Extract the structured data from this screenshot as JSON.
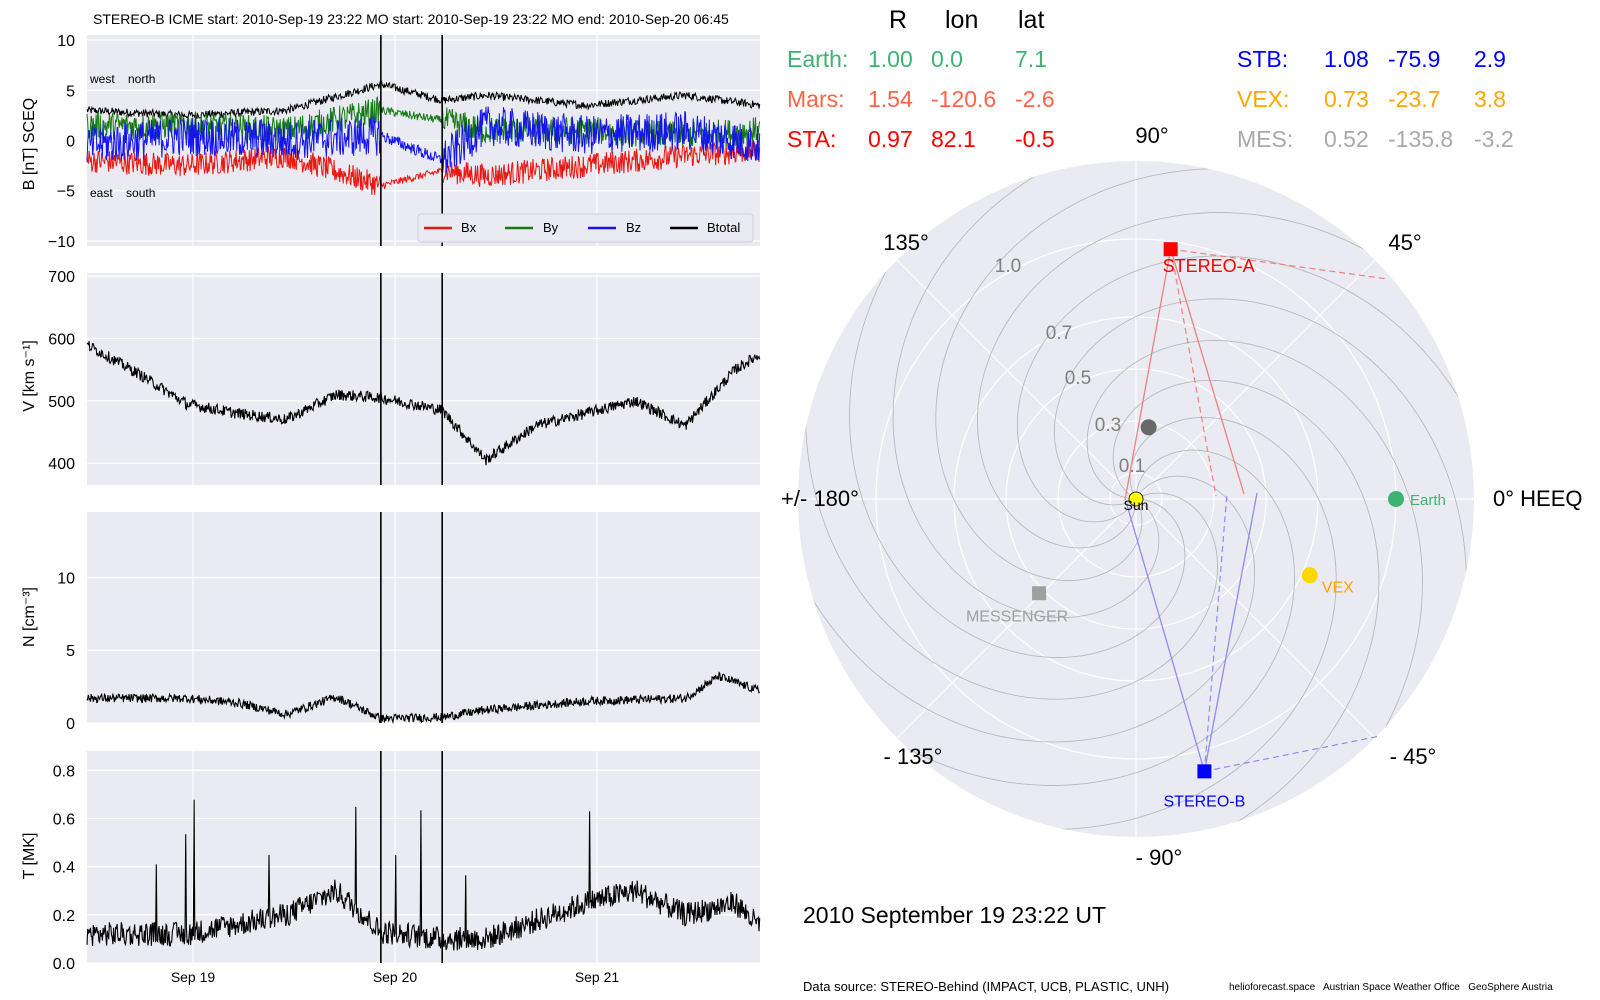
{
  "panel_title": "STEREO-B    ICME start: 2010-Sep-19 23:22   MO start: 2010-Sep-19 23:22   MO end: 2010-Sep-20 06:45",
  "time_ticks": [
    "Sep 19",
    "Sep 20",
    "Sep 21"
  ],
  "b_panel": {
    "ylabel": "B [nT] SCEQ",
    "yticks": [
      "10",
      "5",
      "0",
      "−5",
      "−10"
    ],
    "annot_top": "west    north",
    "annot_bottom": "east    south",
    "legend": [
      "Bx",
      "By",
      "Bz",
      "Btotal"
    ],
    "colors": {
      "Bx": "#e8170f",
      "By": "#147a14",
      "Bz": "#1414f0",
      "Btotal": "#000000"
    }
  },
  "v_panel": {
    "ylabel": "V [km s⁻¹]",
    "yticks": [
      "700",
      "600",
      "500",
      "400"
    ]
  },
  "n_panel": {
    "ylabel": "N [cm⁻³]",
    "yticks": [
      "10",
      "5",
      "0"
    ]
  },
  "t_panel": {
    "ylabel": "T [MK]",
    "yticks": [
      "0.8",
      "0.6",
      "0.4",
      "0.2",
      "0.0"
    ]
  },
  "chart_data": [
    {
      "type": "line",
      "name": "B panel",
      "ylabel": "B [nT] SCEQ",
      "ylim": [
        -10.5,
        10.5
      ],
      "x_range_days": [
        "2010-09-18 12:00",
        "2010-09-21 21:00"
      ],
      "event_lines": [
        "2010-09-19 23:22",
        "2010-09-20 06:45"
      ],
      "series": [
        {
          "name": "Btotal",
          "x": [
            "2010-09-18 12:00",
            "2010-09-19 00:00",
            "2010-09-19 12:00",
            "2010-09-19 23:22",
            "2010-09-20 06:45",
            "2010-09-20 12:00",
            "2010-09-21 00:00",
            "2010-09-21 12:00",
            "2010-09-21 21:00"
          ],
          "values": [
            3.0,
            2.5,
            3.0,
            5.6,
            4.0,
            4.5,
            3.5,
            4.5,
            3.5
          ]
        },
        {
          "name": "Bx",
          "x": [
            "2010-09-18 12:00",
            "2010-09-19 00:00",
            "2010-09-19 12:00",
            "2010-09-19 23:22",
            "2010-09-20 06:45",
            "2010-09-20 12:00",
            "2010-09-21 00:00",
            "2010-09-21 12:00",
            "2010-09-21 21:00"
          ],
          "values": [
            -2.0,
            -2.5,
            -1.5,
            -4.5,
            -3.0,
            -3.5,
            -2.5,
            -1.5,
            -1.0
          ]
        },
        {
          "name": "By",
          "x": [
            "2010-09-18 12:00",
            "2010-09-19 00:00",
            "2010-09-19 12:00",
            "2010-09-19 23:22",
            "2010-09-20 06:45",
            "2010-09-20 12:00",
            "2010-09-21 00:00",
            "2010-09-21 12:00",
            "2010-09-21 21:00"
          ],
          "values": [
            1.5,
            1.5,
            1.0,
            3.0,
            2.0,
            1.0,
            1.0,
            0.5,
            1.0
          ]
        },
        {
          "name": "Bz",
          "x": [
            "2010-09-18 12:00",
            "2010-09-19 00:00",
            "2010-09-19 12:00",
            "2010-09-19 23:22",
            "2010-09-20 06:45",
            "2010-09-20 12:00",
            "2010-09-21 00:00",
            "2010-09-21 12:00",
            "2010-09-21 21:00"
          ],
          "values": [
            -0.5,
            0.5,
            0.0,
            0.5,
            -2.0,
            1.5,
            0.5,
            1.0,
            -0.5
          ]
        }
      ]
    },
    {
      "type": "line",
      "name": "V panel",
      "ylabel": "V [km s⁻¹]",
      "ylim": [
        365,
        705
      ],
      "series": [
        {
          "name": "V",
          "x": [
            "2010-09-18 12:00",
            "2010-09-18 18:00",
            "2010-09-19 00:00",
            "2010-09-19 06:00",
            "2010-09-19 12:00",
            "2010-09-19 18:00",
            "2010-09-19 23:22",
            "2010-09-20 06:45",
            "2010-09-20 12:00",
            "2010-09-20 18:00",
            "2010-09-21 00:00",
            "2010-09-21 06:00",
            "2010-09-21 12:00",
            "2010-09-21 18:00",
            "2010-09-21 21:00"
          ],
          "values": [
            590,
            545,
            495,
            480,
            470,
            510,
            505,
            485,
            405,
            460,
            480,
            500,
            460,
            550,
            575
          ]
        }
      ]
    },
    {
      "type": "line",
      "name": "N panel",
      "ylabel": "N [cm⁻³]",
      "ylim": [
        0,
        14.5
      ],
      "series": [
        {
          "name": "N",
          "x": [
            "2010-09-18 12:00",
            "2010-09-19 00:00",
            "2010-09-19 06:00",
            "2010-09-19 12:00",
            "2010-09-19 18:00",
            "2010-09-19 23:22",
            "2010-09-20 06:45",
            "2010-09-20 12:00",
            "2010-09-21 00:00",
            "2010-09-21 12:00",
            "2010-09-21 16:00",
            "2010-09-21 21:00"
          ],
          "values": [
            1.7,
            1.7,
            1.4,
            0.6,
            1.8,
            0.3,
            0.4,
            0.9,
            1.5,
            1.7,
            3.2,
            2.2
          ]
        }
      ]
    },
    {
      "type": "line",
      "name": "T panel",
      "ylabel": "T [MK]",
      "ylim": [
        0,
        0.88
      ],
      "series": [
        {
          "name": "T",
          "x": [
            "2010-09-18 12:00",
            "2010-09-19 00:00",
            "2010-09-19 12:00",
            "2010-09-19 18:00",
            "2010-09-19 23:22",
            "2010-09-20 06:45",
            "2010-09-20 12:00",
            "2010-09-21 00:00",
            "2010-09-21 06:00",
            "2010-09-21 12:00",
            "2010-09-21 18:00",
            "2010-09-21 21:00"
          ],
          "values": [
            0.12,
            0.12,
            0.2,
            0.3,
            0.13,
            0.1,
            0.1,
            0.25,
            0.3,
            0.2,
            0.25,
            0.15
          ]
        }
      ]
    },
    {
      "type": "scatter",
      "name": "HEEQ polar position plot",
      "projection": "polar",
      "r_ticks": [
        "0.1",
        "0.3",
        "0.5",
        "0.7",
        "1.0"
      ],
      "angle_labels": {
        "0": "0° HEEQ",
        "45": "45°",
        "90": "90°",
        "135": "135°",
        "180": "+/- 180°",
        "-135": "- 135°",
        "-90": "- 90°",
        "-45": "- 45°"
      },
      "points": [
        {
          "name": "Sun",
          "r": 0.0,
          "lon": 0.0,
          "color": "#ffff00",
          "marker": "circle"
        },
        {
          "name": "Earth",
          "r": 1.0,
          "lon": 0.0,
          "color": "#3cb371",
          "marker": "circle"
        },
        {
          "name": "STEREO-A",
          "r": 0.97,
          "lon": 82.1,
          "color": "#ff0000",
          "marker": "square"
        },
        {
          "name": "STEREO-B",
          "r": 1.08,
          "lon": -75.9,
          "color": "#0000ff",
          "marker": "square"
        },
        {
          "name": "VEX",
          "r": 0.73,
          "lon": -23.7,
          "color": "#ffd700",
          "marker": "circle"
        },
        {
          "name": "MESSENGER",
          "r": 0.52,
          "lon": -135.8,
          "color": "#a0a0a0",
          "marker": "square"
        },
        {
          "name": "",
          "r": 0.28,
          "lon": 80.0,
          "color": "#696969",
          "marker": "circle"
        }
      ]
    }
  ],
  "positions": {
    "headers": [
      "R",
      "lon",
      "lat"
    ],
    "left": [
      {
        "name": "Earth:",
        "R": "1.00",
        "lon": "0.0",
        "lat": "7.1",
        "color": "#3cb371"
      },
      {
        "name": "Mars:",
        "R": "1.54",
        "lon": "-120.6",
        "lat": "-2.6",
        "color": "#ff6347"
      },
      {
        "name": "STA:",
        "R": "0.97",
        "lon": "82.1",
        "lat": "-0.5",
        "color": "#ff0000"
      }
    ],
    "right": [
      {
        "name": "STB:",
        "R": "1.08",
        "lon": "-75.9",
        "lat": "2.9",
        "color": "#0000ff"
      },
      {
        "name": "VEX:",
        "R": "0.73",
        "lon": "-23.7",
        "lat": "3.8",
        "color": "#ffa500"
      },
      {
        "name": "MES:",
        "R": "0.52",
        "lon": "-135.8",
        "lat": "-3.2",
        "color": "#a9a9a9"
      }
    ]
  },
  "datetime": "2010 September 19  23:22 UT",
  "footer": {
    "source": "Data source: STEREO-Behind (IMPACT, UCB, PLASTIC, UNH)",
    "credits": "helioforecast.space   Austrian Space Weather Office   GeoSphere Austria"
  }
}
